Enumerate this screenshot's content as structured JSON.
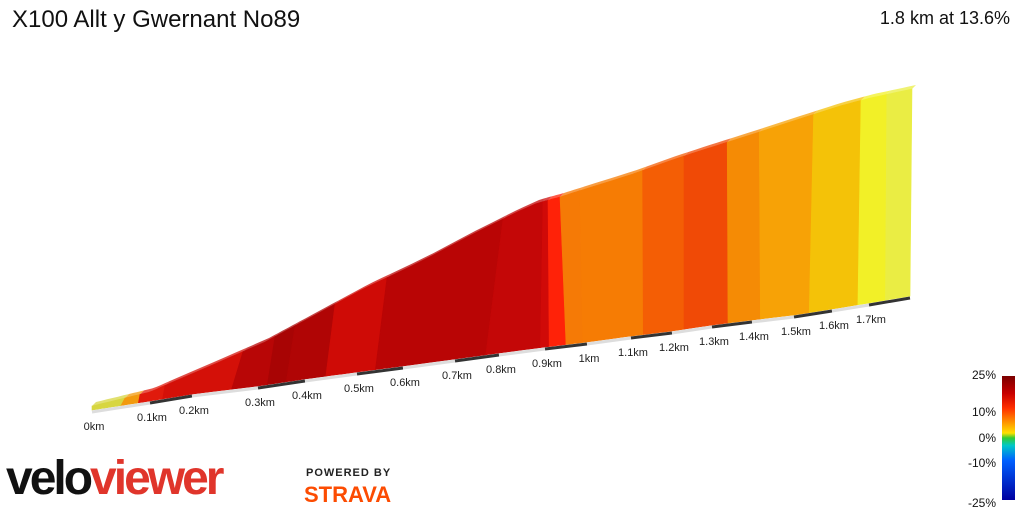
{
  "header": {
    "title": "X100 Allt y Gwernant No89",
    "summary": "1.8 km at 13.6%"
  },
  "branding": {
    "logo_velo": "velo",
    "logo_viewer": "viewer",
    "powered_by": "POWERED BY",
    "strava": "STRAVA"
  },
  "legend": {
    "labels": [
      "25%",
      "10%",
      "0%",
      "-10%",
      "-25%"
    ]
  },
  "chart_data": {
    "type": "area",
    "title": "X100 Allt y Gwernant No89",
    "x_unit": "km",
    "distance_km": 1.8,
    "average_gradient_pct": 13.6,
    "xlim": [
      0,
      1.8
    ],
    "tick_labels": [
      "0km",
      "0.1km",
      "0.2km",
      "0.3km",
      "0.4km",
      "0.5km",
      "0.6km",
      "0.7km",
      "0.8km",
      "0.9km",
      "1km",
      "1.1km",
      "1.2km",
      "1.3km",
      "1.4km",
      "1.5km",
      "1.6km",
      "1.7km"
    ],
    "segments_colors": {
      "note_free": true
    },
    "segments": [
      {
        "start_km": 0.0,
        "end_km": 0.05,
        "color": "#d7d640"
      },
      {
        "start_km": 0.05,
        "end_km": 0.08,
        "color": "#f29a0e"
      },
      {
        "start_km": 0.08,
        "end_km": 0.13,
        "color": "#e01a0c"
      },
      {
        "start_km": 0.13,
        "end_km": 0.26,
        "color": "#d41008"
      },
      {
        "start_km": 0.26,
        "end_km": 0.32,
        "color": "#b80606"
      },
      {
        "start_km": 0.32,
        "end_km": 0.36,
        "color": "#a80404"
      },
      {
        "start_km": 0.36,
        "end_km": 0.44,
        "color": "#b00505"
      },
      {
        "start_km": 0.44,
        "end_km": 0.54,
        "color": "#cf0b06"
      },
      {
        "start_km": 0.54,
        "end_km": 0.77,
        "color": "#b90505"
      },
      {
        "start_km": 0.77,
        "end_km": 0.89,
        "color": "#c40707"
      },
      {
        "start_km": 0.89,
        "end_km": 0.91,
        "color": "#d00a08"
      },
      {
        "start_km": 0.91,
        "end_km": 0.95,
        "color": "#ff2208"
      },
      {
        "start_km": 0.95,
        "end_km": 0.99,
        "color": "#f57a06"
      },
      {
        "start_km": 0.99,
        "end_km": 1.13,
        "color": "#f67c04"
      },
      {
        "start_km": 1.13,
        "end_km": 1.23,
        "color": "#f45e05"
      },
      {
        "start_km": 1.23,
        "end_km": 1.34,
        "color": "#f04a06"
      },
      {
        "start_km": 1.34,
        "end_km": 1.42,
        "color": "#f58b05"
      },
      {
        "start_km": 1.42,
        "end_km": 1.54,
        "color": "#f7a206"
      },
      {
        "start_km": 1.54,
        "end_km": 1.67,
        "color": "#f4c208"
      },
      {
        "start_km": 1.67,
        "end_km": 1.74,
        "color": "#f2f027"
      },
      {
        "start_km": 1.74,
        "end_km": 1.8,
        "color": "#eaed44"
      }
    ],
    "legend": {
      "placement": "bottom-right",
      "labels": [
        "25%",
        "10%",
        "0%",
        "-10%",
        "-25%"
      ]
    }
  }
}
